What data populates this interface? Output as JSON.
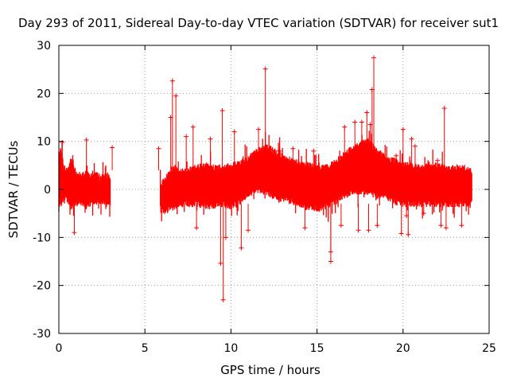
{
  "chart_data": {
    "type": "scatter",
    "title": "Day 293 of 2011, Sidereal Day-to-day VTEC variation (SDTVAR) for receiver sut1",
    "xlabel": "GPS time / hours",
    "ylabel": "SDTVAR / TECUs",
    "xlim": [
      0,
      25
    ],
    "ylim": [
      -30,
      30
    ],
    "xticks": [
      0,
      5,
      10,
      15,
      20,
      25
    ],
    "yticks": [
      -30,
      -20,
      -10,
      0,
      10,
      20,
      30
    ],
    "xtick_labels": [
      "0",
      "5",
      "10",
      "15",
      "20",
      "25"
    ],
    "ytick_labels": [
      "-30",
      "-20",
      "-10",
      "0",
      "10",
      "20",
      "30"
    ],
    "grid": true,
    "marker": "+",
    "color": "#ff0000",
    "series": [
      {
        "name": "SDTVAR sut1",
        "segments": [
          {
            "x": [
              0.0,
              0.1,
              0.2,
              0.3,
              0.4,
              0.5,
              0.6,
              0.7,
              0.8,
              0.9,
              1.0,
              1.2,
              1.4,
              1.6,
              1.8,
              2.0,
              2.2,
              2.4,
              2.6,
              2.8,
              3.0
            ],
            "upper": [
              7.5,
              8.0,
              6.5,
              4.5,
              4.0,
              3.5,
              5.0,
              6.5,
              6.0,
              4.5,
              3.5,
              3.0,
              3.0,
              3.5,
              3.0,
              3.0,
              3.0,
              2.5,
              2.5,
              3.0,
              2.5
            ],
            "lower": [
              -3.0,
              -3.0,
              -2.5,
              -2.0,
              -2.0,
              -2.0,
              -3.0,
              -4.0,
              -3.5,
              -3.0,
              -3.0,
              -2.5,
              -3.0,
              -3.5,
              -3.0,
              -3.0,
              -2.5,
              -2.5,
              -2.5,
              -3.0,
              -3.0
            ]
          },
          {
            "x": [
              5.9,
              6.2,
              6.5,
              6.8,
              7.0,
              7.5,
              8.0,
              8.5,
              9.0,
              9.5,
              10.0,
              10.5,
              11.0,
              11.5,
              12.0,
              12.5,
              13.0,
              13.5,
              14.0,
              14.5,
              15.0,
              15.5,
              16.0,
              16.5,
              17.0,
              17.5,
              18.0,
              18.5,
              19.0,
              19.5,
              20.0,
              20.5,
              21.0,
              21.5,
              22.0,
              22.5,
              23.0,
              23.5,
              24.0
            ],
            "upper": [
              1.0,
              2.0,
              4.0,
              5.0,
              3.5,
              4.0,
              4.5,
              5.0,
              4.5,
              4.5,
              5.0,
              5.5,
              6.5,
              8.0,
              9.0,
              8.0,
              7.0,
              6.0,
              5.5,
              5.0,
              4.5,
              4.5,
              5.5,
              7.0,
              8.5,
              9.5,
              10.0,
              8.0,
              6.5,
              6.0,
              5.0,
              5.0,
              4.5,
              5.0,
              5.0,
              4.5,
              4.5,
              4.5,
              4.0
            ],
            "lower": [
              -4.5,
              -4.5,
              -4.0,
              -3.5,
              -3.0,
              -3.0,
              -3.0,
              -3.5,
              -3.5,
              -3.0,
              -3.5,
              -2.5,
              -1.0,
              0.0,
              -0.5,
              -1.5,
              -2.0,
              -2.5,
              -3.0,
              -4.0,
              -4.0,
              -3.5,
              -2.5,
              -1.5,
              -0.5,
              -0.5,
              -0.5,
              -1.5,
              -1.5,
              -2.5,
              -3.0,
              -3.0,
              -3.0,
              -3.0,
              -3.0,
              -3.0,
              -3.0,
              -3.0,
              -3.0
            ]
          }
        ],
        "points": [
          {
            "x": 3.1,
            "y": 8.7
          },
          {
            "x": 1.6,
            "y": 10.3
          },
          {
            "x": 0.9,
            "y": -9.0
          },
          {
            "x": 0.2,
            "y": 9.8
          },
          {
            "x": 5.8,
            "y": 8.5
          },
          {
            "x": 6.6,
            "y": 22.6
          },
          {
            "x": 6.8,
            "y": 19.5
          },
          {
            "x": 6.5,
            "y": 15.0
          },
          {
            "x": 7.8,
            "y": 13.0
          },
          {
            "x": 7.4,
            "y": 11.0
          },
          {
            "x": 8.0,
            "y": -8.0
          },
          {
            "x": 8.8,
            "y": 10.5
          },
          {
            "x": 9.4,
            "y": -15.4
          },
          {
            "x": 9.55,
            "y": -23.0
          },
          {
            "x": 9.5,
            "y": 16.4
          },
          {
            "x": 9.7,
            "y": -10.0
          },
          {
            "x": 10.6,
            "y": -12.2
          },
          {
            "x": 10.2,
            "y": 12.0
          },
          {
            "x": 11.0,
            "y": -8.5
          },
          {
            "x": 12.0,
            "y": 25.1
          },
          {
            "x": 11.6,
            "y": 12.5
          },
          {
            "x": 12.8,
            "y": 8.0
          },
          {
            "x": 13.6,
            "y": 8.5
          },
          {
            "x": 14.8,
            "y": 8.0
          },
          {
            "x": 14.3,
            "y": -8.0
          },
          {
            "x": 15.8,
            "y": -13.0
          },
          {
            "x": 15.8,
            "y": -15.0
          },
          {
            "x": 16.4,
            "y": -7.5
          },
          {
            "x": 16.6,
            "y": 13.0
          },
          {
            "x": 17.2,
            "y": 14.0
          },
          {
            "x": 17.4,
            "y": -8.5
          },
          {
            "x": 17.6,
            "y": 14.0
          },
          {
            "x": 17.9,
            "y": 16.0
          },
          {
            "x": 18.2,
            "y": 20.8
          },
          {
            "x": 18.0,
            "y": -8.5
          },
          {
            "x": 18.3,
            "y": 27.4
          },
          {
            "x": 18.1,
            "y": 13.5
          },
          {
            "x": 18.5,
            "y": -7.5
          },
          {
            "x": 19.6,
            "y": 7.0
          },
          {
            "x": 19.9,
            "y": -9.2
          },
          {
            "x": 20.3,
            "y": -9.4
          },
          {
            "x": 20.0,
            "y": 12.5
          },
          {
            "x": 20.5,
            "y": 10.5
          },
          {
            "x": 20.7,
            "y": 9.0
          },
          {
            "x": 20.2,
            "y": -5.5
          },
          {
            "x": 21.2,
            "y": -5.0
          },
          {
            "x": 22.4,
            "y": 16.9
          },
          {
            "x": 22.2,
            "y": -7.5
          },
          {
            "x": 22.5,
            "y": -8.0
          },
          {
            "x": 22.0,
            "y": 6.0
          },
          {
            "x": 23.4,
            "y": -7.5
          },
          {
            "x": 23.7,
            "y": 3.5
          }
        ]
      }
    ]
  }
}
